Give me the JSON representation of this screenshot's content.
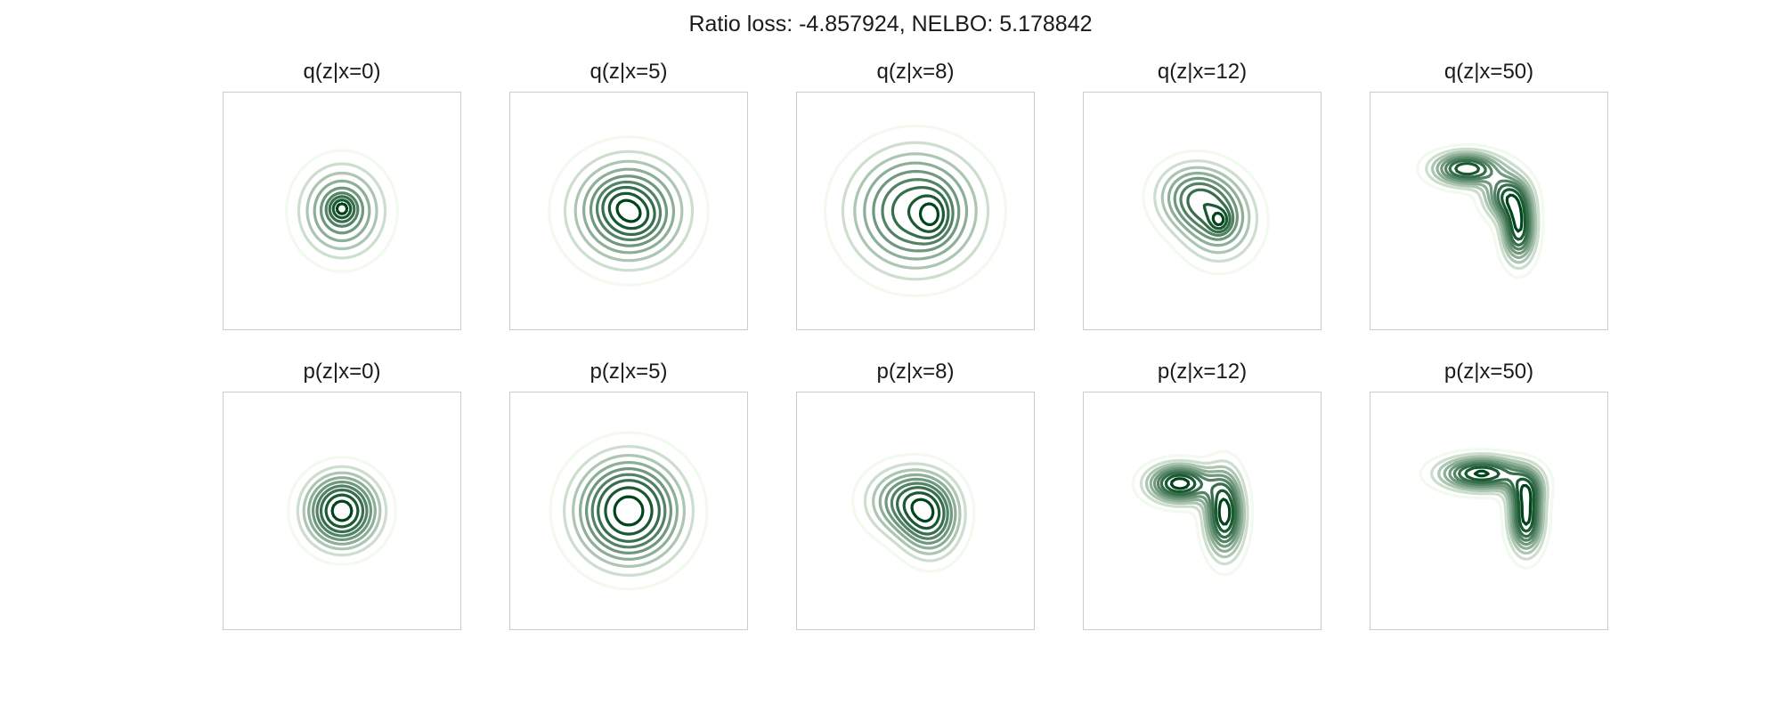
{
  "figure": {
    "title": "Ratio loss: -4.857924, NELBO: 5.178842"
  },
  "colors": {
    "frame": "#cccccc",
    "cmap": "Greens",
    "line_lightest": "#f2faef",
    "line_darkest": "#00441b"
  },
  "chart_data": [
    {
      "type": "contour",
      "title": "q(z|x=0)",
      "x_value": 0,
      "grid": false,
      "components": [
        {
          "mx": 0,
          "my": 0,
          "sx": 0.55,
          "sy": 0.6,
          "w": 1.0
        },
        {
          "mx": 0,
          "my": 0.05,
          "sx": 0.16,
          "sy": 0.16,
          "w": 0.6
        }
      ]
    },
    {
      "type": "contour",
      "title": "q(z|x=5)",
      "x_value": 5,
      "grid": false,
      "components": [
        {
          "mx": 0,
          "my": 0,
          "sx": 0.75,
          "sy": 0.7,
          "w": 1.0
        },
        {
          "mx": -0.15,
          "my": 0.15,
          "sx": 0.3,
          "sy": 0.25,
          "w": 0.2
        },
        {
          "mx": 0.15,
          "my": -0.15,
          "sx": 0.3,
          "sy": 0.25,
          "w": 0.2
        }
      ]
    },
    {
      "type": "contour",
      "title": "q(z|x=8)",
      "x_value": 8,
      "grid": false,
      "components": [
        {
          "mx": 0,
          "my": 0,
          "sx": 0.85,
          "sy": 0.8,
          "w": 1.0
        },
        {
          "mx": 0.35,
          "my": -0.1,
          "sx": 0.22,
          "sy": 0.3,
          "w": 0.35
        }
      ]
    },
    {
      "type": "contour",
      "title": "q(z|x=12)",
      "x_value": 12,
      "grid": false,
      "components": [
        {
          "mx": -0.2,
          "my": 0.3,
          "sx": 0.5,
          "sy": 0.45,
          "w": 1.0
        },
        {
          "mx": 0.35,
          "my": -0.2,
          "sx": 0.5,
          "sy": 0.55,
          "w": 1.0
        },
        {
          "mx": 0.35,
          "my": -0.2,
          "sx": 0.14,
          "sy": 0.16,
          "w": 0.6
        }
      ]
    },
    {
      "type": "contour",
      "title": "q(z|x=50)",
      "x_value": 50,
      "grid": false,
      "components": [
        {
          "mx": -0.45,
          "my": 0.85,
          "sx": 0.45,
          "sy": 0.22,
          "w": 1.0
        },
        {
          "mx": 0.35,
          "my": 0.3,
          "sx": 0.3,
          "sy": 0.3,
          "w": 0.8
        },
        {
          "mx": 0.6,
          "my": -0.35,
          "sx": 0.22,
          "sy": 0.45,
          "w": 1.0
        }
      ]
    },
    {
      "type": "contour",
      "title": "p(z|x=0)",
      "x_value": 0,
      "grid": false,
      "components": [
        {
          "mx": 0,
          "my": 0,
          "sx": 0.48,
          "sy": 0.48,
          "w": 1.0
        }
      ]
    },
    {
      "type": "contour",
      "title": "p(z|x=5)",
      "x_value": 5,
      "grid": false,
      "components": [
        {
          "mx": 0,
          "my": 0,
          "sx": 0.7,
          "sy": 0.7,
          "w": 1.0
        }
      ]
    },
    {
      "type": "contour",
      "title": "p(z|x=8)",
      "x_value": 8,
      "grid": false,
      "components": [
        {
          "mx": -0.15,
          "my": 0.2,
          "sx": 0.55,
          "sy": 0.45,
          "w": 1.0
        },
        {
          "mx": 0.3,
          "my": -0.2,
          "sx": 0.4,
          "sy": 0.5,
          "w": 1.0
        }
      ]
    },
    {
      "type": "contour",
      "title": "p(z|x=12)",
      "x_value": 12,
      "grid": false,
      "components": [
        {
          "mx": -0.45,
          "my": 0.55,
          "sx": 0.42,
          "sy": 0.25,
          "w": 1.0
        },
        {
          "mx": 0.45,
          "my": -0.05,
          "sx": 0.25,
          "sy": 0.55,
          "w": 1.0
        }
      ]
    },
    {
      "type": "contour",
      "title": "p(z|x=50)",
      "x_value": 50,
      "grid": false,
      "components": [
        {
          "mx": -0.15,
          "my": 0.75,
          "sx": 0.55,
          "sy": 0.22,
          "w": 1.0
        },
        {
          "mx": 0.75,
          "my": 0.45,
          "sx": 0.25,
          "sy": 0.25,
          "w": 0.5
        },
        {
          "mx": 0.75,
          "my": -0.15,
          "sx": 0.22,
          "sy": 0.45,
          "w": 1.0
        }
      ]
    }
  ]
}
